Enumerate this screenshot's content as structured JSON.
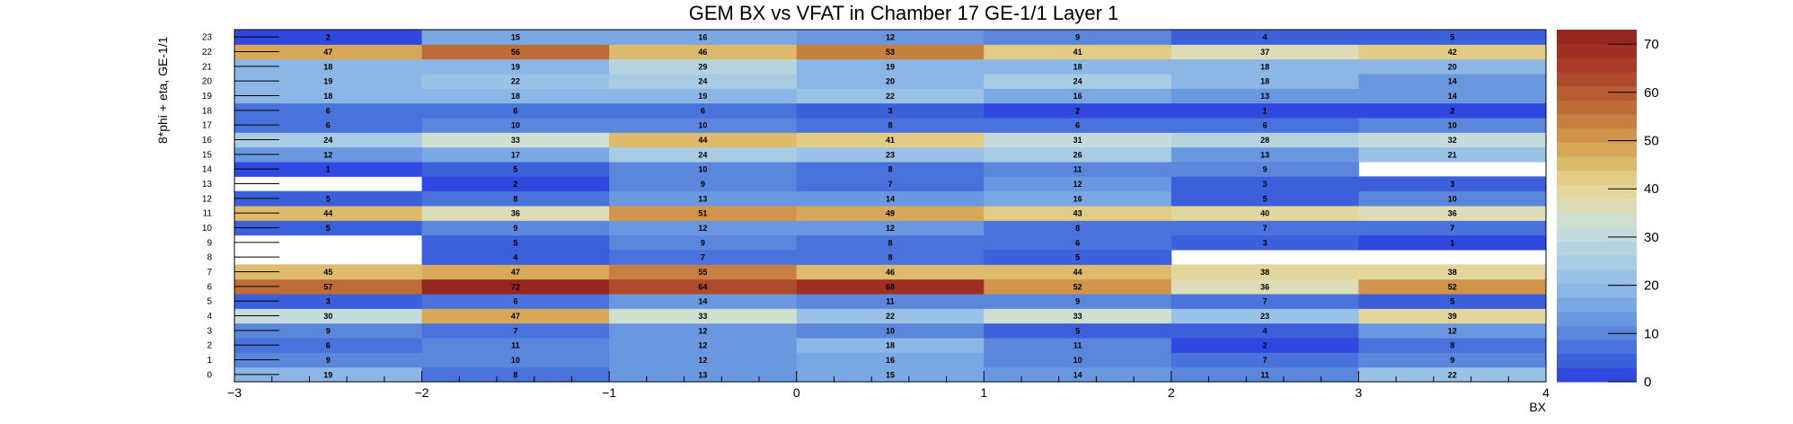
{
  "chart_data": {
    "type": "heatmap",
    "title": "GEM BX vs VFAT in Chamber 17 GE-1/1 Layer 1",
    "xlabel": "BX",
    "ylabel": "8*phi + eta, GE-1/1",
    "x_edges": [
      -3,
      -2,
      -1,
      0,
      1,
      2,
      3,
      4
    ],
    "x_tick_labels": [
      "−3",
      "−2",
      "−1",
      "0",
      "1",
      "2",
      "3",
      "4"
    ],
    "y_tick_labels": [
      "0",
      "1",
      "2",
      "3",
      "4",
      "5",
      "6",
      "7",
      "8",
      "9",
      "10",
      "11",
      "12",
      "13",
      "14",
      "15",
      "16",
      "17",
      "18",
      "19",
      "20",
      "21",
      "22",
      "23"
    ],
    "xlim": [
      -3,
      4
    ],
    "ylim": [
      0,
      24
    ],
    "zlim": [
      0,
      73
    ],
    "z_tick_labels": [
      "0",
      "10",
      "20",
      "30",
      "40",
      "50",
      "60",
      "70"
    ],
    "z_ticks": [
      0,
      10,
      20,
      30,
      40,
      50,
      60,
      70
    ],
    "palette_steps": 25,
    "values": [
      [
        19,
        8,
        13,
        15,
        14,
        11,
        22
      ],
      [
        9,
        10,
        12,
        16,
        10,
        7,
        9
      ],
      [
        6,
        11,
        12,
        18,
        11,
        2,
        8
      ],
      [
        9,
        7,
        12,
        10,
        5,
        4,
        12
      ],
      [
        30,
        47,
        33,
        22,
        33,
        23,
        39
      ],
      [
        3,
        6,
        14,
        11,
        9,
        7,
        5
      ],
      [
        57,
        72,
        64,
        68,
        52,
        36,
        52
      ],
      [
        45,
        47,
        55,
        46,
        44,
        38,
        38
      ],
      [
        null,
        4,
        7,
        8,
        5,
        null,
        null
      ],
      [
        null,
        5,
        9,
        8,
        6,
        3,
        1
      ],
      [
        5,
        9,
        12,
        12,
        8,
        7,
        7
      ],
      [
        44,
        36,
        51,
        49,
        43,
        40,
        36
      ],
      [
        5,
        8,
        13,
        14,
        16,
        5,
        10
      ],
      [
        null,
        2,
        9,
        7,
        12,
        3,
        3
      ],
      [
        1,
        5,
        10,
        8,
        11,
        9,
        null
      ],
      [
        12,
        17,
        24,
        23,
        26,
        13,
        21
      ],
      [
        24,
        33,
        44,
        41,
        31,
        28,
        32
      ],
      [
        6,
        10,
        10,
        8,
        6,
        6,
        10
      ],
      [
        6,
        6,
        6,
        3,
        2,
        1,
        2
      ],
      [
        18,
        18,
        19,
        22,
        16,
        13,
        14
      ],
      [
        19,
        22,
        24,
        20,
        24,
        18,
        14
      ],
      [
        18,
        19,
        29,
        19,
        18,
        18,
        20
      ],
      [
        47,
        56,
        46,
        53,
        41,
        37,
        42
      ],
      [
        2,
        15,
        16,
        12,
        9,
        4,
        5
      ]
    ],
    "colorscale": [
      "#3047e0",
      "#3c5fdc",
      "#4a72dc",
      "#5a86dc",
      "#6a98e0",
      "#7aa8e4",
      "#8bb6e6",
      "#9ac2e6",
      "#a8cce4",
      "#b6d4e0",
      "#c4dcdc",
      "#d0e0d0",
      "#dcdcb8",
      "#e2d69c",
      "#e2cb84",
      "#deba6c",
      "#d8a858",
      "#d0944a",
      "#c88040",
      "#c06c38",
      "#b85a32",
      "#b04a2c",
      "#a83c28",
      "#a03024",
      "#982620"
    ]
  }
}
